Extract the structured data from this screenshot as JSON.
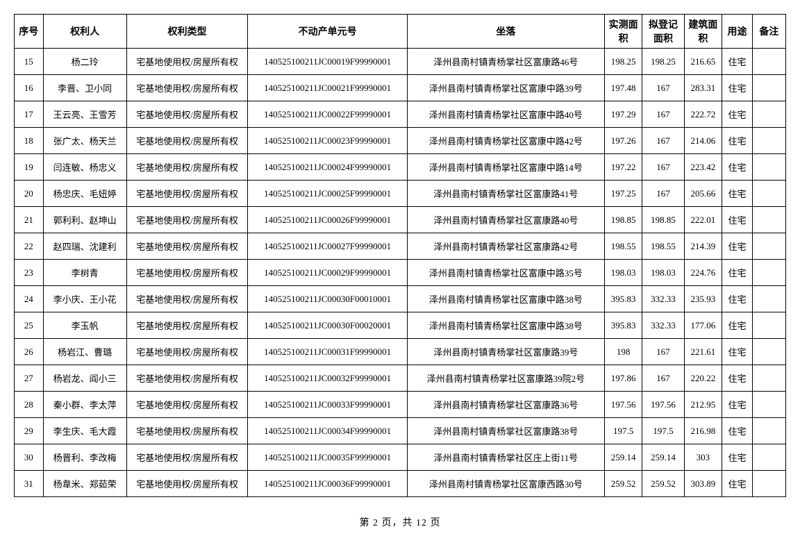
{
  "table": {
    "headers": {
      "seq": "序号",
      "owner": "权利人",
      "rtype": "权利类型",
      "unit": "不动产单元号",
      "loc": "坐落",
      "area1": "实测面积",
      "area2": "拟登记面积",
      "area3": "建筑面积",
      "use": "用途",
      "remark": "备注"
    },
    "rows": [
      {
        "seq": "15",
        "owner": "杨二玲",
        "rtype": "宅基地使用权/房屋所有权",
        "unit": "140525100211JC00019F99990001",
        "loc": "泽州县南村镇青杨掌社区富康路46号",
        "area1": "198.25",
        "area2": "198.25",
        "area3": "216.65",
        "use": "住宅",
        "remark": ""
      },
      {
        "seq": "16",
        "owner": "李晋、卫小同",
        "rtype": "宅基地使用权/房屋所有权",
        "unit": "140525100211JC00021F99990001",
        "loc": "泽州县南村镇青杨掌社区富康中路39号",
        "area1": "197.48",
        "area2": "167",
        "area3": "283.31",
        "use": "住宅",
        "remark": ""
      },
      {
        "seq": "17",
        "owner": "王云亮、王雪芳",
        "rtype": "宅基地使用权/房屋所有权",
        "unit": "140525100211JC00022F99990001",
        "loc": "泽州县南村镇青杨掌社区富康中路40号",
        "area1": "197.29",
        "area2": "167",
        "area3": "222.72",
        "use": "住宅",
        "remark": ""
      },
      {
        "seq": "18",
        "owner": "张广太、杨天兰",
        "rtype": "宅基地使用权/房屋所有权",
        "unit": "140525100211JC00023F99990001",
        "loc": "泽州县南村镇青杨掌社区富康中路42号",
        "area1": "197.26",
        "area2": "167",
        "area3": "214.06",
        "use": "住宅",
        "remark": ""
      },
      {
        "seq": "19",
        "owner": "闫连敏、杨忠义",
        "rtype": "宅基地使用权/房屋所有权",
        "unit": "140525100211JC00024F99990001",
        "loc": "泽州县南村镇青杨掌社区富康中路14号",
        "area1": "197.22",
        "area2": "167",
        "area3": "223.42",
        "use": "住宅",
        "remark": ""
      },
      {
        "seq": "20",
        "owner": "杨忠庆、毛妞婷",
        "rtype": "宅基地使用权/房屋所有权",
        "unit": "140525100211JC00025F99990001",
        "loc": "泽州县南村镇青杨掌社区富康路41号",
        "area1": "197.25",
        "area2": "167",
        "area3": "205.66",
        "use": "住宅",
        "remark": ""
      },
      {
        "seq": "21",
        "owner": "郭利利、赵坤山",
        "rtype": "宅基地使用权/房屋所有权",
        "unit": "140525100211JC00026F99990001",
        "loc": "泽州县南村镇青杨掌社区富康路40号",
        "area1": "198.85",
        "area2": "198.85",
        "area3": "222.01",
        "use": "住宅",
        "remark": ""
      },
      {
        "seq": "22",
        "owner": "赵四瑞、沈建利",
        "rtype": "宅基地使用权/房屋所有权",
        "unit": "140525100211JC00027F99990001",
        "loc": "泽州县南村镇青杨掌社区富康路42号",
        "area1": "198.55",
        "area2": "198.55",
        "area3": "214.39",
        "use": "住宅",
        "remark": ""
      },
      {
        "seq": "23",
        "owner": "李树青",
        "rtype": "宅基地使用权/房屋所有权",
        "unit": "140525100211JC00029F99990001",
        "loc": "泽州县南村镇青杨掌社区富康中路35号",
        "area1": "198.03",
        "area2": "198.03",
        "area3": "224.76",
        "use": "住宅",
        "remark": ""
      },
      {
        "seq": "24",
        "owner": "李小庆、王小花",
        "rtype": "宅基地使用权/房屋所有权",
        "unit": "140525100211JC00030F00010001",
        "loc": "泽州县南村镇青杨掌社区富康中路38号",
        "area1": "395.83",
        "area2": "332.33",
        "area3": "235.93",
        "use": "住宅",
        "remark": ""
      },
      {
        "seq": "25",
        "owner": "李玉帆",
        "rtype": "宅基地使用权/房屋所有权",
        "unit": "140525100211JC00030F00020001",
        "loc": "泽州县南村镇青杨掌社区富康中路38号",
        "area1": "395.83",
        "area2": "332.33",
        "area3": "177.06",
        "use": "住宅",
        "remark": ""
      },
      {
        "seq": "26",
        "owner": "杨岩江、曹璐",
        "rtype": "宅基地使用权/房屋所有权",
        "unit": "140525100211JC00031F99990001",
        "loc": "泽州县南村镇青杨掌社区富康路39号",
        "area1": "198",
        "area2": "167",
        "area3": "221.61",
        "use": "住宅",
        "remark": ""
      },
      {
        "seq": "27",
        "owner": "杨岩龙、阎小三",
        "rtype": "宅基地使用权/房屋所有权",
        "unit": "140525100211JC00032F99990001",
        "loc": "泽州县南村镇青杨掌社区富康路39院2号",
        "area1": "197.86",
        "area2": "167",
        "area3": "220.22",
        "use": "住宅",
        "remark": ""
      },
      {
        "seq": "28",
        "owner": "秦小群、李太萍",
        "rtype": "宅基地使用权/房屋所有权",
        "unit": "140525100211JC00033F99990001",
        "loc": "泽州县南村镇青杨掌社区富康路36号",
        "area1": "197.56",
        "area2": "197.56",
        "area3": "212.95",
        "use": "住宅",
        "remark": ""
      },
      {
        "seq": "29",
        "owner": "李生庆、毛大霞",
        "rtype": "宅基地使用权/房屋所有权",
        "unit": "140525100211JC00034F99990001",
        "loc": "泽州县南村镇青杨掌社区富康路38号",
        "area1": "197.5",
        "area2": "197.5",
        "area3": "216.98",
        "use": "住宅",
        "remark": ""
      },
      {
        "seq": "30",
        "owner": "杨晋利、李改梅",
        "rtype": "宅基地使用权/房屋所有权",
        "unit": "140525100211JC00035F99990001",
        "loc": "泽州县南村镇青杨掌社区庄上街11号",
        "area1": "259.14",
        "area2": "259.14",
        "area3": "303",
        "use": "住宅",
        "remark": ""
      },
      {
        "seq": "31",
        "owner": "杨韋米、郑茹荣",
        "rtype": "宅基地使用权/房屋所有权",
        "unit": "140525100211JC00036F99990001",
        "loc": "泽州县南村镇青杨掌社区富康西路30号",
        "area1": "259.52",
        "area2": "259.52",
        "area3": "303.89",
        "use": "住宅",
        "remark": ""
      }
    ]
  },
  "footer": {
    "text": "第 2 页，共 12 页"
  }
}
